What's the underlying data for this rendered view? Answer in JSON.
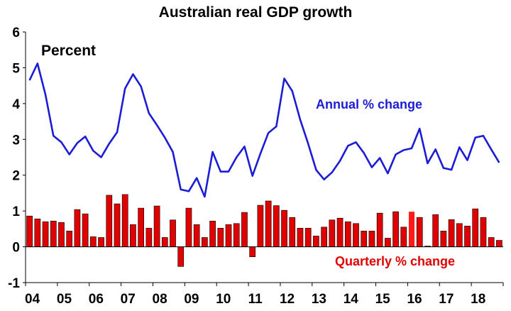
{
  "chart_data": {
    "type": "bar+line",
    "title": "Australian real GDP growth",
    "unit_label": "Percent",
    "ylim": [
      -1,
      6
    ],
    "yticks": [
      -1,
      0,
      1,
      2,
      3,
      4,
      5,
      6
    ],
    "grid": false,
    "x_period": "quarterly",
    "x_start": "2004 Q1",
    "xtick_labels": [
      "04",
      "05",
      "06",
      "07",
      "08",
      "09",
      "10",
      "11",
      "12",
      "13",
      "14",
      "15",
      "16",
      "17",
      "18"
    ],
    "series": [
      {
        "name": "Annual % change",
        "type": "line",
        "color": "#1c1cd6",
        "values": [
          4.65,
          5.12,
          4.25,
          3.1,
          2.92,
          2.58,
          2.9,
          3.08,
          2.68,
          2.5,
          2.88,
          3.2,
          4.42,
          4.82,
          4.48,
          3.73,
          3.4,
          3.05,
          2.65,
          1.6,
          1.55,
          1.92,
          1.4,
          2.65,
          2.1,
          2.1,
          2.5,
          2.8,
          1.98,
          2.6,
          3.18,
          3.36,
          4.7,
          4.35,
          3.55,
          2.88,
          2.15,
          1.88,
          2.08,
          2.4,
          2.82,
          2.92,
          2.62,
          2.22,
          2.48,
          2.05,
          2.58,
          2.7,
          2.75,
          3.3,
          2.33,
          2.72,
          2.2,
          2.15,
          2.78,
          2.42,
          3.05,
          3.1,
          2.72,
          2.35
        ]
      },
      {
        "name": "Quarterly % change",
        "type": "bar",
        "color": "#e00000",
        "highlight_color": "#ff1a1a",
        "highlight_index": 48,
        "values": [
          0.86,
          0.78,
          0.7,
          0.72,
          0.68,
          0.44,
          1.04,
          0.92,
          0.28,
          0.26,
          1.44,
          1.2,
          1.46,
          0.62,
          1.08,
          0.52,
          1.14,
          0.26,
          0.75,
          -0.55,
          1.08,
          0.62,
          0.26,
          0.72,
          0.52,
          0.62,
          0.65,
          0.96,
          -0.28,
          1.16,
          1.28,
          1.15,
          1.02,
          0.82,
          0.52,
          0.52,
          0.3,
          0.55,
          0.75,
          0.8,
          0.7,
          0.65,
          0.44,
          0.44,
          0.94,
          0.24,
          0.98,
          0.55,
          0.98,
          0.82,
          0.02,
          0.9,
          0.44,
          0.76,
          0.65,
          0.58,
          1.06,
          0.82,
          0.26,
          0.18
        ]
      }
    ],
    "annotations": [
      {
        "text": "Annual % change",
        "color": "#1c1cd6"
      },
      {
        "text": "Quarterly % change",
        "color": "#e00000"
      }
    ]
  }
}
